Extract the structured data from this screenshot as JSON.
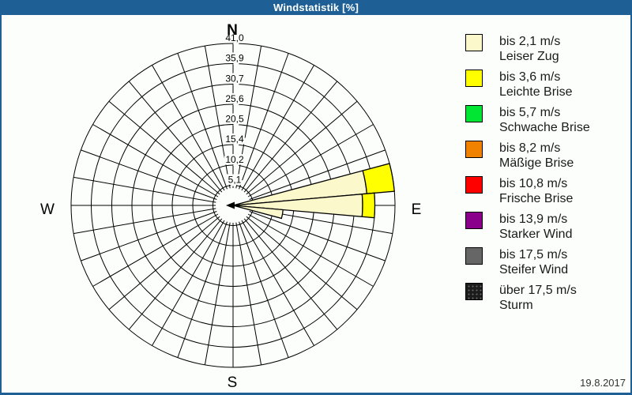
{
  "window": {
    "title": "Windstatistik [%]"
  },
  "footer": {
    "date": "19.8.2017"
  },
  "colors": {
    "frame": "#1E6095",
    "background": "#FCFEFC",
    "grid": "#000000"
  },
  "chart_data": {
    "type": "windrose",
    "title": "Windstatistik [%]",
    "unit": "%",
    "max": 41.0,
    "ring_values": [
      5.1,
      10.2,
      15.4,
      20.5,
      25.6,
      30.7,
      35.9,
      41.0
    ],
    "ring_labels": [
      "5,1",
      "10,2",
      "15,4",
      "20,5",
      "25,6",
      "30,7",
      "35,9",
      "41,0"
    ],
    "sectors": 36,
    "sector_width_deg": 10,
    "grid": "on",
    "legend_position": "right",
    "compass_labels": {
      "north": "N",
      "east": "E",
      "south": "S",
      "west": "W"
    },
    "petals": [
      {
        "direction_deg": 80,
        "segments": [
          {
            "speed_class": "bis 2,1 m/s",
            "value": 34.0,
            "color": "#FBF8CC"
          },
          {
            "speed_class": "bis 3,6 m/s",
            "value": 7.0,
            "color": "#FFFF00"
          }
        ]
      },
      {
        "direction_deg": 90,
        "segments": [
          {
            "speed_class": "bis 2,1 m/s",
            "value": 32.8,
            "color": "#FBF8CC"
          },
          {
            "speed_class": "bis 3,6 m/s",
            "value": 3.1,
            "color": "#FFFF00"
          }
        ]
      },
      {
        "direction_deg": 100,
        "segments": [
          {
            "speed_class": "bis 2,1 m/s",
            "value": 12.7,
            "color": "#FBF8CC"
          }
        ]
      }
    ]
  },
  "legend": {
    "items": [
      {
        "color": "#FBF8CC",
        "speed": "bis 2,1 m/s",
        "name": "Leiser Zug"
      },
      {
        "color": "#FFFF00",
        "speed": "bis 3,6 m/s",
        "name": "Leichte Brise"
      },
      {
        "color": "#00E632",
        "speed": "bis 5,7 m/s",
        "name": "Schwache Brise"
      },
      {
        "color": "#F08200",
        "speed": "bis 8,2 m/s",
        "name": "Mäßige Brise"
      },
      {
        "color": "#FF0000",
        "speed": "bis 10,8 m/s",
        "name": "Frische Brise"
      },
      {
        "color": "#8B008B",
        "speed": "bis 13,9 m/s",
        "name": "Starker Wind"
      },
      {
        "color": "#666666",
        "speed": "bis 17,5 m/s",
        "name": "Steifer Wind"
      },
      {
        "color": "#1C1C1C",
        "speed": "über 17,5 m/s",
        "name": "Sturm",
        "pattern": "dots"
      }
    ]
  }
}
